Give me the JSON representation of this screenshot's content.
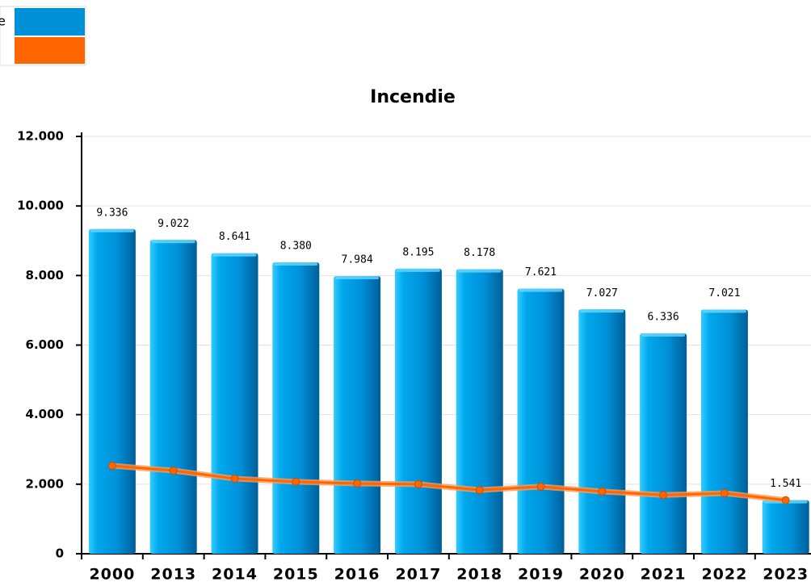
{
  "chart_data": {
    "type": "bar",
    "title": "Incendie",
    "categories": [
      "2000",
      "2013",
      "2014",
      "2015",
      "2016",
      "2017",
      "2018",
      "2019",
      "2020",
      "2021",
      "2022",
      "2023"
    ],
    "series": [
      {
        "name": "e",
        "type": "bar",
        "color": "#0090d8",
        "values": [
          9336,
          9022,
          8641,
          8380,
          7984,
          8195,
          8178,
          7621,
          7027,
          6336,
          7021,
          1541
        ],
        "value_labels": [
          "9.336",
          "9.022",
          "8.641",
          "8.380",
          "7.984",
          "8.195",
          "8.178",
          "7.621",
          "7.027",
          "6.336",
          "7.021",
          "1.541"
        ]
      },
      {
        "type": "line",
        "color": "#ff6600",
        "values": [
          2530,
          2390,
          2160,
          2070,
          2020,
          2000,
          1830,
          1930,
          1790,
          1690,
          1740,
          1540
        ]
      }
    ],
    "ylim": [
      0,
      12000
    ],
    "yticks": [
      0,
      {
        "value": 2000,
        "label": "2.000"
      },
      {
        "value": 4000,
        "label": "4.000"
      },
      {
        "value": 6000,
        "label": "6.000"
      },
      {
        "value": 8000,
        "label": "8.000"
      },
      {
        "value": 10000,
        "label": "10.000"
      },
      {
        "value": 12000,
        "label": "12.000"
      }
    ],
    "grid": true
  }
}
